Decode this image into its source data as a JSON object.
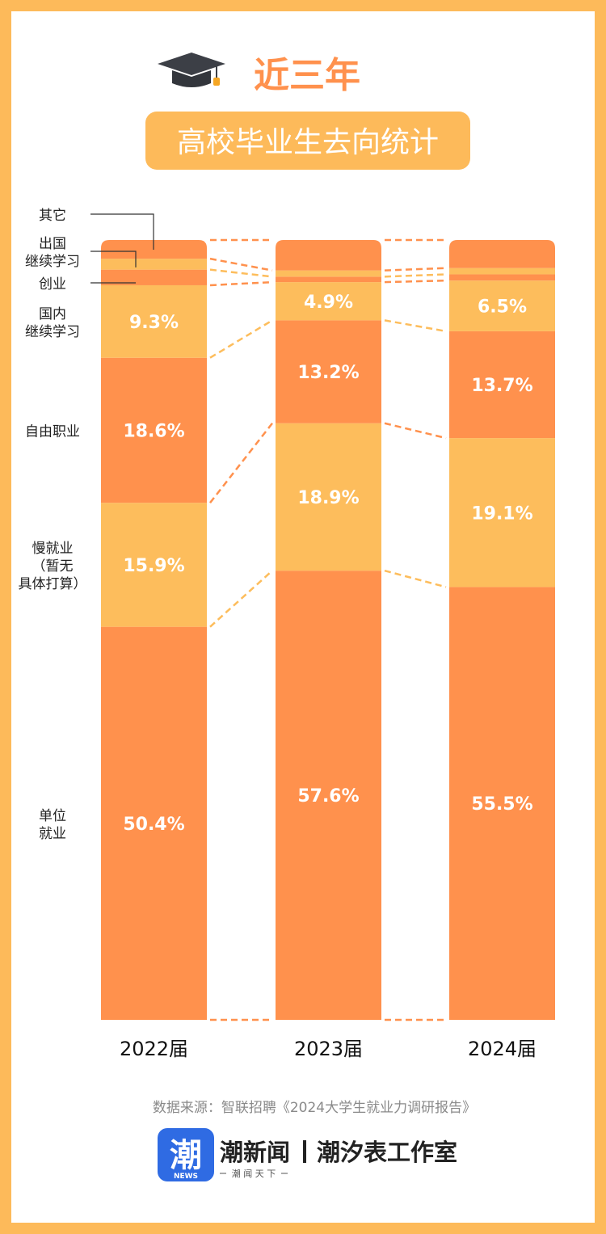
{
  "header": {
    "title": "近三年",
    "subtitle": "高校毕业生去向统计"
  },
  "colors": {
    "frame": "#FDBA5A",
    "dark_orange": "#FF914D",
    "light_orange": "#FDBD5C",
    "title_orange": "#FF914D",
    "label_text": "#222222",
    "value_text": "#ffffff"
  },
  "icons": [
    "graduation-cap-icon",
    "chao-news-logo-icon"
  ],
  "chart_data": {
    "type": "bar",
    "stacked": true,
    "categories": [
      "2022届",
      "2023届",
      "2024届"
    ],
    "series": [
      {
        "name": "单位就业",
        "display_name": "单位\n就业",
        "values": [
          50.4,
          57.6,
          55.5
        ],
        "color": "#FF914D",
        "labels": [
          "50.4%",
          "57.6%",
          "55.5%"
        ]
      },
      {
        "name": "慢就业（暂无具体打算）",
        "display_name": "慢就业\n（暂无\n具体打算）",
        "values": [
          15.9,
          18.9,
          19.1
        ],
        "color": "#FDBD5C",
        "labels": [
          "15.9%",
          "18.9%",
          "19.1%"
        ]
      },
      {
        "name": "自由职业",
        "display_name": "自由职业",
        "values": [
          18.6,
          13.2,
          13.7
        ],
        "color": "#FF914D",
        "labels": [
          "18.6%",
          "13.2%",
          "13.7%"
        ]
      },
      {
        "name": "国内继续学习",
        "display_name": "国内\n继续学习",
        "values": [
          9.3,
          4.9,
          6.5
        ],
        "color": "#FDBD5C",
        "labels": [
          "9.3%",
          "4.9%",
          "6.5%"
        ]
      },
      {
        "name": "创业",
        "display_name": "创业",
        "values": [
          2.0,
          0.7,
          0.8
        ],
        "color": "#FF914D",
        "labels": [
          "",
          "",
          ""
        ]
      },
      {
        "name": "出国继续学习",
        "display_name": "出国\n继续学习",
        "values": [
          1.4,
          0.8,
          0.8
        ],
        "color": "#FDBD5C",
        "labels": [
          "",
          "",
          ""
        ]
      },
      {
        "name": "其它",
        "display_name": "其它",
        "values": [
          2.4,
          3.9,
          3.6
        ],
        "color": "#FF914D",
        "labels": [
          "",
          "",
          ""
        ]
      }
    ],
    "ylim": [
      0,
      100
    ],
    "legend": "left"
  },
  "footer": {
    "source": "数据来源：智联招聘《2024大学生就业力调研报告》",
    "logo_char": "潮",
    "logo_sub": "NEWS",
    "brand": "潮新闻",
    "studio": "潮汐表工作室",
    "tagline": "潮 闻 天 下"
  }
}
